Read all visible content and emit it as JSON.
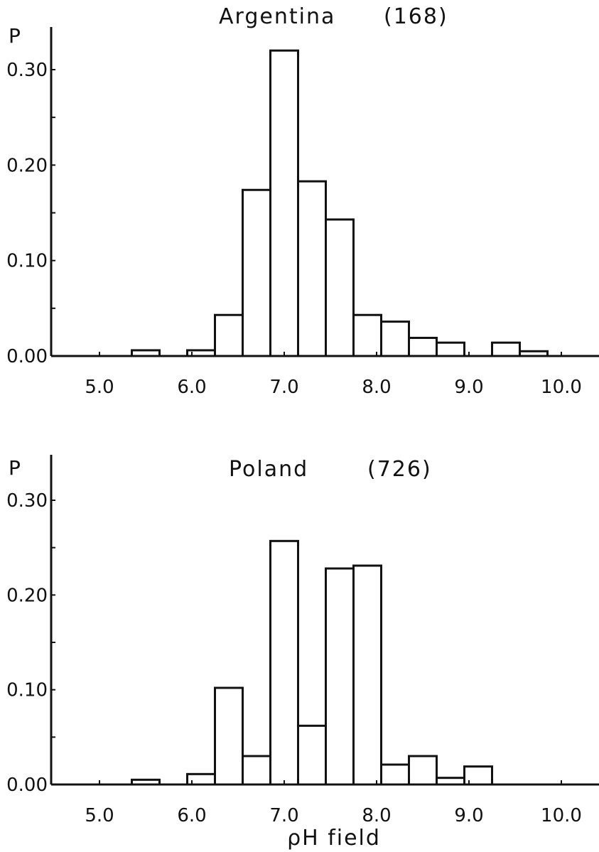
{
  "chart_data": [
    {
      "type": "bar",
      "title": "Argentina",
      "count": "(168)",
      "ylabel": "P",
      "xlabel": "",
      "ylim": [
        0,
        0.33
      ],
      "xlim": [
        4.5,
        10.4
      ],
      "y_ticks": [
        0.0,
        0.1,
        0.2,
        0.3
      ],
      "y_tick_labels": [
        "0.00",
        "0.10",
        "0.20",
        "0.30"
      ],
      "x_ticks": [
        5.0,
        6.0,
        7.0,
        8.0,
        9.0,
        10.0
      ],
      "x_tick_labels": [
        "5.0",
        "6.0",
        "7.0",
        "8.0",
        "9.0",
        "10.0"
      ],
      "bin_width": 0.3,
      "bin_starts": [
        5.35,
        5.95,
        6.25,
        6.55,
        6.85,
        7.15,
        7.45,
        7.75,
        8.05,
        8.35,
        8.65,
        9.25,
        9.55
      ],
      "values": [
        0.006,
        0.006,
        0.043,
        0.174,
        0.32,
        0.183,
        0.143,
        0.043,
        0.036,
        0.019,
        0.014,
        0.014,
        0.005
      ]
    },
    {
      "type": "bar",
      "title": "Poland",
      "count": "(726)",
      "ylabel": "P",
      "xlabel": "ρH field",
      "ylim": [
        0,
        0.33
      ],
      "xlim": [
        4.5,
        10.4
      ],
      "y_ticks": [
        0.0,
        0.1,
        0.2,
        0.3
      ],
      "y_tick_labels": [
        "0.00",
        "0.10",
        "0.20",
        "0.30"
      ],
      "x_ticks": [
        5.0,
        6.0,
        7.0,
        8.0,
        9.0,
        10.0
      ],
      "x_tick_labels": [
        "5.0",
        "6.0",
        "7.0",
        "8.0",
        "9.0",
        "10.0"
      ],
      "bin_width": 0.3,
      "bin_starts": [
        5.35,
        5.95,
        6.25,
        6.55,
        6.85,
        7.15,
        7.45,
        7.75,
        8.05,
        8.35,
        8.65,
        8.95
      ],
      "values": [
        0.005,
        0.011,
        0.102,
        0.03,
        0.257,
        0.062,
        0.228,
        0.231,
        0.021,
        0.03,
        0.007,
        0.019
      ]
    }
  ]
}
